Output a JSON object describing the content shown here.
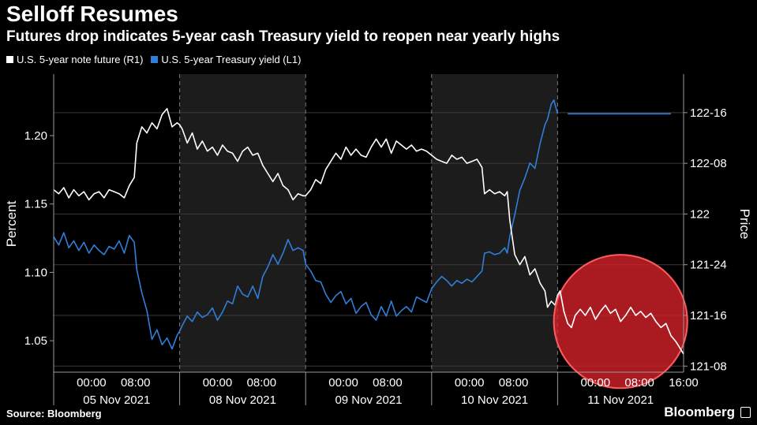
{
  "header": {
    "title": "Selloff Resumes",
    "subtitle": "Futures drop indicates 5-year cash Treasury yield to reopen near yearly highs"
  },
  "footer": {
    "source": "Source: Bloomberg",
    "brand": "Bloomberg"
  },
  "colors": {
    "future": "#ffffff",
    "yield": "#2f7fd8",
    "shade": "#1c1c1c",
    "highlight_fill": "#d9222a",
    "highlight_stroke": "#ff5a5f"
  },
  "chart_data": {
    "type": "line",
    "legend_placement": "top-left",
    "grid": true,
    "ylabel_left": "Percent",
    "ylabel_right": "Price",
    "y_left_ticks": [
      "1.20",
      "1.15",
      "1.10",
      "1.05"
    ],
    "y_left_values": [
      1.2,
      1.15,
      1.1,
      1.05
    ],
    "y_left_range": [
      1.027,
      1.245
    ],
    "y_right_ticks": [
      "122-16",
      "122-08",
      "122",
      "121-24",
      "121-16",
      "121-08"
    ],
    "y_right_values": [
      122.5,
      122.25,
      122.0,
      121.75,
      121.5,
      121.25
    ],
    "y_right_range": [
      121.22,
      122.69
    ],
    "x_range": [
      0,
      5
    ],
    "sessions": [
      {
        "start": 0.0,
        "end": 1.0,
        "shaded": false
      },
      {
        "start": 1.0,
        "end": 2.0,
        "shaded": true
      },
      {
        "start": 2.0,
        "end": 3.0,
        "shaded": false
      },
      {
        "start": 3.0,
        "end": 4.0,
        "shaded": true
      },
      {
        "start": 4.0,
        "end": 5.0,
        "shaded": false
      }
    ],
    "x_time_ticks": [
      {
        "label": "00:00",
        "x": 0.3
      },
      {
        "label": "08:00",
        "x": 0.65
      },
      {
        "label": "00:00",
        "x": 1.3
      },
      {
        "label": "08:00",
        "x": 1.65
      },
      {
        "label": "00:00",
        "x": 2.3
      },
      {
        "label": "08:00",
        "x": 2.65
      },
      {
        "label": "00:00",
        "x": 3.3
      },
      {
        "label": "08:00",
        "x": 3.65
      },
      {
        "label": "00:00",
        "x": 4.3
      },
      {
        "label": "08:00",
        "x": 4.65
      },
      {
        "label": "16:00",
        "x": 5.0
      }
    ],
    "x_date_ticks": [
      {
        "label": "05 Nov 2021",
        "x": 0.5
      },
      {
        "label": "08 Nov 2021",
        "x": 1.5
      },
      {
        "label": "09 Nov 2021",
        "x": 2.5
      },
      {
        "label": "10 Nov 2021",
        "x": 3.5
      },
      {
        "label": "11 Nov 2021",
        "x": 4.5
      }
    ],
    "highlight": {
      "type": "circle",
      "center": [
        4.5,
        121.47
      ],
      "radius_x": 0.53
    },
    "series": [
      {
        "name": "U.S. 5-year note future (R1)",
        "axis": "right",
        "points": [
          [
            0.0,
            122.12
          ],
          [
            0.04,
            122.1
          ],
          [
            0.08,
            122.13
          ],
          [
            0.12,
            122.08
          ],
          [
            0.16,
            122.12
          ],
          [
            0.2,
            122.09
          ],
          [
            0.24,
            122.11
          ],
          [
            0.28,
            122.07
          ],
          [
            0.32,
            122.1
          ],
          [
            0.36,
            122.11
          ],
          [
            0.4,
            122.08
          ],
          [
            0.44,
            122.12
          ],
          [
            0.48,
            122.11
          ],
          [
            0.52,
            122.1
          ],
          [
            0.56,
            122.08
          ],
          [
            0.6,
            122.14
          ],
          [
            0.64,
            122.18
          ],
          [
            0.66,
            122.35
          ],
          [
            0.7,
            122.43
          ],
          [
            0.74,
            122.4
          ],
          [
            0.78,
            122.45
          ],
          [
            0.82,
            122.42
          ],
          [
            0.86,
            122.49
          ],
          [
            0.9,
            122.52
          ],
          [
            0.94,
            122.43
          ],
          [
            0.98,
            122.45
          ],
          [
            1.0,
            122.44
          ],
          [
            1.02,
            122.42
          ],
          [
            1.06,
            122.35
          ],
          [
            1.1,
            122.4
          ],
          [
            1.14,
            122.32
          ],
          [
            1.18,
            122.36
          ],
          [
            1.22,
            122.31
          ],
          [
            1.26,
            122.33
          ],
          [
            1.3,
            122.29
          ],
          [
            1.34,
            122.34
          ],
          [
            1.38,
            122.31
          ],
          [
            1.42,
            122.3
          ],
          [
            1.46,
            122.26
          ],
          [
            1.5,
            122.31
          ],
          [
            1.54,
            122.33
          ],
          [
            1.58,
            122.29
          ],
          [
            1.62,
            122.3
          ],
          [
            1.66,
            122.24
          ],
          [
            1.7,
            122.2
          ],
          [
            1.74,
            122.16
          ],
          [
            1.78,
            122.2
          ],
          [
            1.82,
            122.14
          ],
          [
            1.86,
            122.12
          ],
          [
            1.9,
            122.07
          ],
          [
            1.94,
            122.1
          ],
          [
            1.98,
            122.09
          ],
          [
            2.0,
            122.09
          ],
          [
            2.04,
            122.12
          ],
          [
            2.08,
            122.17
          ],
          [
            2.12,
            122.15
          ],
          [
            2.16,
            122.22
          ],
          [
            2.2,
            122.26
          ],
          [
            2.24,
            122.3
          ],
          [
            2.28,
            122.27
          ],
          [
            2.32,
            122.33
          ],
          [
            2.36,
            122.29
          ],
          [
            2.4,
            122.32
          ],
          [
            2.44,
            122.29
          ],
          [
            2.48,
            122.28
          ],
          [
            2.52,
            122.33
          ],
          [
            2.56,
            122.37
          ],
          [
            2.6,
            122.33
          ],
          [
            2.64,
            122.37
          ],
          [
            2.68,
            122.3
          ],
          [
            2.72,
            122.36
          ],
          [
            2.76,
            122.34
          ],
          [
            2.8,
            122.32
          ],
          [
            2.84,
            122.34
          ],
          [
            2.88,
            122.31
          ],
          [
            2.92,
            122.32
          ],
          [
            2.96,
            122.31
          ],
          [
            3.0,
            122.29
          ],
          [
            3.04,
            122.27
          ],
          [
            3.08,
            122.26
          ],
          [
            3.12,
            122.25
          ],
          [
            3.16,
            122.29
          ],
          [
            3.2,
            122.27
          ],
          [
            3.24,
            122.28
          ],
          [
            3.28,
            122.25
          ],
          [
            3.32,
            122.26
          ],
          [
            3.36,
            122.27
          ],
          [
            3.4,
            122.23
          ],
          [
            3.42,
            122.1
          ],
          [
            3.46,
            122.12
          ],
          [
            3.5,
            122.1
          ],
          [
            3.54,
            122.11
          ],
          [
            3.58,
            122.09
          ],
          [
            3.6,
            122.11
          ],
          [
            3.62,
            121.97
          ],
          [
            3.66,
            121.8
          ],
          [
            3.7,
            121.75
          ],
          [
            3.74,
            121.79
          ],
          [
            3.78,
            121.7
          ],
          [
            3.82,
            121.73
          ],
          [
            3.86,
            121.66
          ],
          [
            3.9,
            121.62
          ],
          [
            3.92,
            121.54
          ],
          [
            3.95,
            121.57
          ],
          [
            3.98,
            121.55
          ],
          [
            4.0,
            121.6
          ],
          [
            4.02,
            121.62
          ],
          [
            4.05,
            121.52
          ],
          [
            4.08,
            121.46
          ],
          [
            4.11,
            121.44
          ],
          [
            4.14,
            121.5
          ],
          [
            4.18,
            121.53
          ],
          [
            4.22,
            121.5
          ],
          [
            4.26,
            121.54
          ],
          [
            4.3,
            121.48
          ],
          [
            4.34,
            121.52
          ],
          [
            4.38,
            121.55
          ],
          [
            4.42,
            121.51
          ],
          [
            4.46,
            121.53
          ],
          [
            4.5,
            121.47
          ],
          [
            4.54,
            121.5
          ],
          [
            4.58,
            121.54
          ],
          [
            4.62,
            121.5
          ],
          [
            4.66,
            121.52
          ],
          [
            4.7,
            121.49
          ],
          [
            4.74,
            121.51
          ],
          [
            4.78,
            121.47
          ],
          [
            4.82,
            121.44
          ],
          [
            4.86,
            121.46
          ],
          [
            4.9,
            121.4
          ],
          [
            4.94,
            121.37
          ],
          [
            4.98,
            121.33
          ],
          [
            5.0,
            121.31
          ]
        ]
      },
      {
        "name": "U.S. 5-year Treasury yield (L1)",
        "axis": "left",
        "points": [
          [
            0.0,
            1.126
          ],
          [
            0.04,
            1.12
          ],
          [
            0.08,
            1.129
          ],
          [
            0.12,
            1.118
          ],
          [
            0.16,
            1.123
          ],
          [
            0.2,
            1.116
          ],
          [
            0.24,
            1.122
          ],
          [
            0.28,
            1.114
          ],
          [
            0.32,
            1.12
          ],
          [
            0.36,
            1.116
          ],
          [
            0.4,
            1.113
          ],
          [
            0.44,
            1.119
          ],
          [
            0.48,
            1.117
          ],
          [
            0.52,
            1.123
          ],
          [
            0.56,
            1.114
          ],
          [
            0.6,
            1.127
          ],
          [
            0.64,
            1.122
          ],
          [
            0.66,
            1.102
          ],
          [
            0.7,
            1.085
          ],
          [
            0.74,
            1.072
          ],
          [
            0.78,
            1.051
          ],
          [
            0.82,
            1.058
          ],
          [
            0.86,
            1.047
          ],
          [
            0.9,
            1.052
          ],
          [
            0.94,
            1.044
          ],
          [
            0.98,
            1.054
          ],
          [
            1.0,
            1.057
          ],
          [
            1.02,
            1.061
          ],
          [
            1.06,
            1.068
          ],
          [
            1.1,
            1.064
          ],
          [
            1.14,
            1.071
          ],
          [
            1.18,
            1.067
          ],
          [
            1.22,
            1.069
          ],
          [
            1.26,
            1.074
          ],
          [
            1.3,
            1.065
          ],
          [
            1.34,
            1.071
          ],
          [
            1.38,
            1.079
          ],
          [
            1.42,
            1.077
          ],
          [
            1.46,
            1.09
          ],
          [
            1.5,
            1.084
          ],
          [
            1.54,
            1.082
          ],
          [
            1.58,
            1.09
          ],
          [
            1.62,
            1.081
          ],
          [
            1.66,
            1.097
          ],
          [
            1.7,
            1.104
          ],
          [
            1.74,
            1.113
          ],
          [
            1.78,
            1.106
          ],
          [
            1.82,
            1.114
          ],
          [
            1.86,
            1.124
          ],
          [
            1.9,
            1.116
          ],
          [
            1.94,
            1.118
          ],
          [
            1.98,
            1.116
          ],
          [
            2.0,
            1.106
          ],
          [
            2.04,
            1.101
          ],
          [
            2.08,
            1.094
          ],
          [
            2.12,
            1.093
          ],
          [
            2.16,
            1.084
          ],
          [
            2.2,
            1.078
          ],
          [
            2.24,
            1.083
          ],
          [
            2.28,
            1.086
          ],
          [
            2.32,
            1.077
          ],
          [
            2.36,
            1.081
          ],
          [
            2.4,
            1.07
          ],
          [
            2.44,
            1.075
          ],
          [
            2.48,
            1.078
          ],
          [
            2.52,
            1.069
          ],
          [
            2.56,
            1.065
          ],
          [
            2.6,
            1.075
          ],
          [
            2.64,
            1.068
          ],
          [
            2.68,
            1.079
          ],
          [
            2.72,
            1.068
          ],
          [
            2.76,
            1.072
          ],
          [
            2.8,
            1.075
          ],
          [
            2.84,
            1.071
          ],
          [
            2.88,
            1.082
          ],
          [
            2.92,
            1.08
          ],
          [
            2.96,
            1.078
          ],
          [
            3.0,
            1.088
          ],
          [
            3.04,
            1.093
          ],
          [
            3.08,
            1.097
          ],
          [
            3.12,
            1.094
          ],
          [
            3.16,
            1.09
          ],
          [
            3.2,
            1.094
          ],
          [
            3.24,
            1.092
          ],
          [
            3.28,
            1.095
          ],
          [
            3.32,
            1.093
          ],
          [
            3.36,
            1.097
          ],
          [
            3.4,
            1.101
          ],
          [
            3.42,
            1.114
          ],
          [
            3.46,
            1.115
          ],
          [
            3.5,
            1.113
          ],
          [
            3.54,
            1.114
          ],
          [
            3.58,
            1.118
          ],
          [
            3.6,
            1.114
          ],
          [
            3.62,
            1.126
          ],
          [
            3.66,
            1.142
          ],
          [
            3.7,
            1.16
          ],
          [
            3.74,
            1.169
          ],
          [
            3.78,
            1.18
          ],
          [
            3.82,
            1.176
          ],
          [
            3.86,
            1.194
          ],
          [
            3.9,
            1.208
          ],
          [
            3.92,
            1.212
          ],
          [
            3.95,
            1.223
          ],
          [
            3.97,
            1.226
          ],
          [
            4.0,
            1.216
          ]
        ]
      },
      {
        "name": "",
        "axis": "left",
        "points": [
          [
            4.08,
            1.216
          ],
          [
            4.9,
            1.216
          ]
        ]
      }
    ]
  }
}
